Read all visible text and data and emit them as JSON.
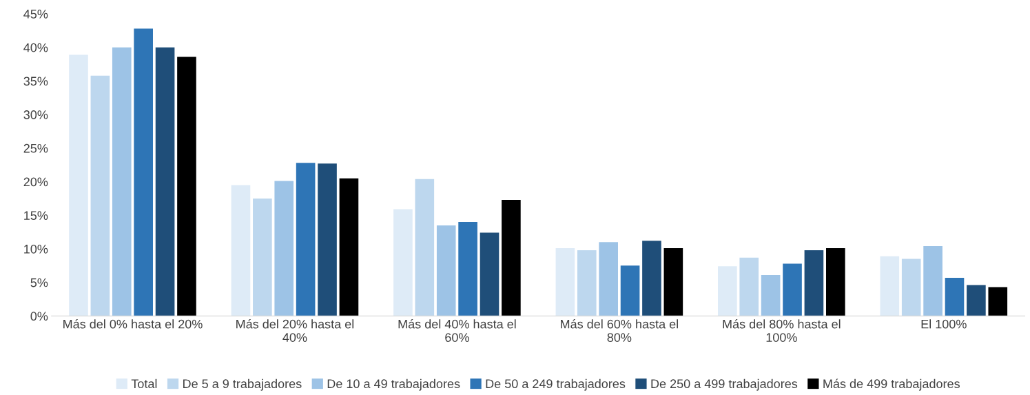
{
  "chart_data": {
    "type": "bar",
    "categories": [
      "Más del 0% hasta el 20%",
      "Más del 20% hasta el\n40%",
      "Más del 40% hasta el\n60%",
      "Más del 60% hasta el\n80%",
      "Más del 80% hasta el\n100%",
      "El 100%"
    ],
    "series": [
      {
        "name": "Total",
        "color": "#deebf7",
        "values": [
          38.9,
          19.5,
          15.9,
          10.1,
          7.4,
          8.9
        ]
      },
      {
        "name": "De 5 a 9 trabajadores",
        "color": "#bdd7ee",
        "values": [
          35.8,
          17.5,
          20.4,
          9.8,
          8.7,
          8.5
        ]
      },
      {
        "name": "De 10 a 49 trabajadores",
        "color": "#9dc3e6",
        "values": [
          40.0,
          20.1,
          13.5,
          11.0,
          6.1,
          10.4
        ]
      },
      {
        "name": "De 50 a 249 trabajadores",
        "color": "#2e75b6",
        "values": [
          42.8,
          22.8,
          14.0,
          7.5,
          7.8,
          5.7
        ]
      },
      {
        "name": "De 250 a 499 trabajadores",
        "color": "#1f4e79",
        "values": [
          40.0,
          22.7,
          12.4,
          11.2,
          9.8,
          4.6
        ]
      },
      {
        "name": "Más de 499 trabajadores",
        "color": "#000000",
        "values": [
          38.6,
          20.5,
          17.3,
          10.1,
          10.1,
          4.3
        ]
      }
    ],
    "ylim": [
      0,
      45
    ],
    "yticks": [
      {
        "value": 0,
        "label": "0%"
      },
      {
        "value": 5,
        "label": "5%"
      },
      {
        "value": 10,
        "label": "10%"
      },
      {
        "value": 15,
        "label": "15%"
      },
      {
        "value": 20,
        "label": "20%"
      },
      {
        "value": 25,
        "label": "25%"
      },
      {
        "value": 30,
        "label": "30%"
      },
      {
        "value": 35,
        "label": "35%"
      },
      {
        "value": 40,
        "label": "40%"
      },
      {
        "value": 45,
        "label": "45%"
      }
    ],
    "grid": false,
    "legend": "bottom"
  }
}
